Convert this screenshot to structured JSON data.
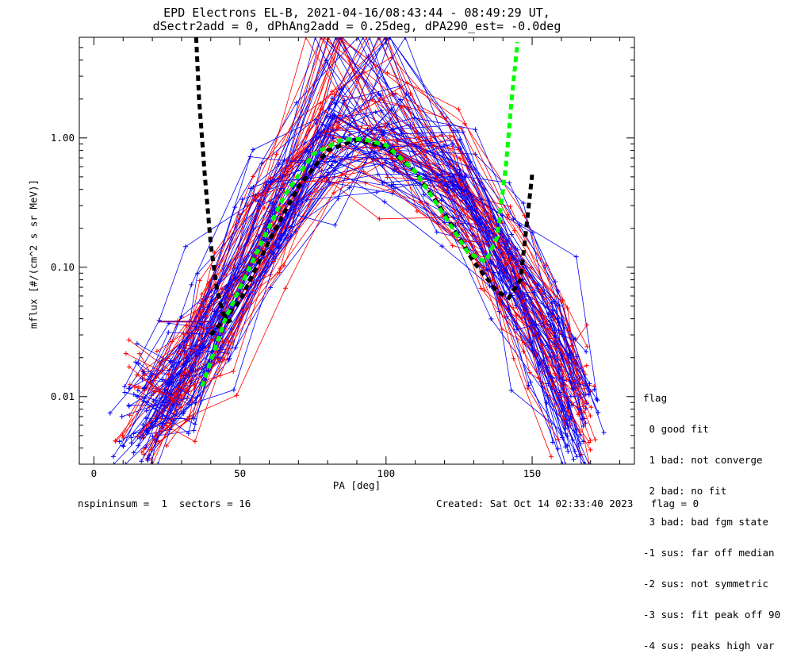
{
  "title_line1": "EPD Electrons EL-B, 2021-04-16/08:43:44 - 08:49:29 UT,",
  "title_line2": "dSectr2add = 0, dPhAng2add = 0.25deg, dPA290_est=  -0.0deg",
  "legend": {
    "title": "flag",
    "items": [
      " 0 good fit",
      " 1 bad: not converge",
      " 2 bad: no fit",
      " 3 bad: bad fgm state",
      "-1 sus: far off median",
      "-2 sus: not symmetric",
      "-3 sus: fit peak off 90",
      "-4 sus: peaks high var"
    ]
  },
  "footer": {
    "left": "nspininsum =  1  sectors = 16",
    "right": "Created: Sat Oct 14 02:33:40 2023   flag = 0"
  },
  "colors": {
    "series_a": "#ff0000",
    "series_b": "#0000ff",
    "fit_black": "#000000",
    "fit_green": "#00ff00",
    "horizontal_seg": "#800080"
  },
  "chart_data": {
    "type": "line",
    "xlabel": "PA [deg]",
    "ylabel": "mflux [#/(cm^2 s sr MeV)]",
    "xlim": [
      -5,
      185
    ],
    "ylim_log": [
      0.003,
      6.0
    ],
    "log_y": true,
    "xticks": [
      0,
      50,
      100,
      150
    ],
    "xtick_labels": [
      "0",
      "50",
      "100",
      "150"
    ],
    "yticks": [
      0.01,
      0.1,
      1.0
    ],
    "ytick_labels": [
      "0.01",
      "0.10",
      "1.00"
    ],
    "grid": false,
    "spectra": {
      "pa_bins": [
        16,
        28,
        40,
        60,
        80,
        100,
        122,
        140,
        155,
        165
      ],
      "profile": [
        0.007,
        0.012,
        0.035,
        0.22,
        0.9,
        0.95,
        0.5,
        0.12,
        0.03,
        0.008
      ],
      "count_red": 40,
      "count_blue": 60
    },
    "fits": [
      {
        "color": "black",
        "style": "dashed",
        "x": [
          35,
          36,
          38,
          40,
          42,
          44,
          46,
          48
        ],
        "y": [
          6.0,
          2.0,
          0.5,
          0.15,
          0.07,
          0.045,
          0.038,
          0.04
        ]
      },
      {
        "color": "black",
        "style": "dashed",
        "x": [
          40,
          50,
          60,
          70,
          80,
          90,
          100,
          110,
          120,
          130,
          138,
          142,
          146,
          148,
          150
        ],
        "y": [
          0.03,
          0.055,
          0.16,
          0.42,
          0.8,
          0.97,
          0.85,
          0.55,
          0.26,
          0.11,
          0.065,
          0.058,
          0.08,
          0.2,
          0.52
        ]
      },
      {
        "color": "green",
        "style": "dashed",
        "x": [
          37,
          45,
          55,
          65,
          75,
          85,
          92,
          100,
          110,
          120,
          128,
          134,
          138,
          141,
          143,
          145
        ],
        "y": [
          0.012,
          0.04,
          0.12,
          0.35,
          0.75,
          0.97,
          0.98,
          0.88,
          0.55,
          0.25,
          0.13,
          0.11,
          0.17,
          0.6,
          2.0,
          5.5
        ]
      }
    ]
  }
}
